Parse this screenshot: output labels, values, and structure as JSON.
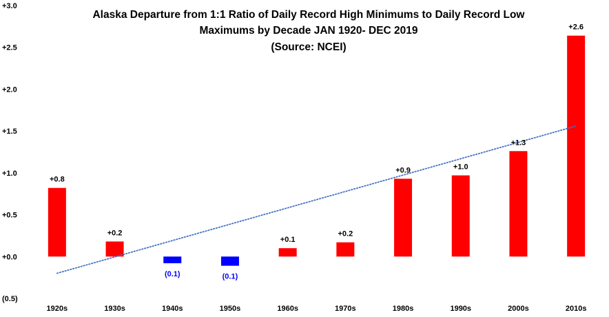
{
  "chart_data": {
    "type": "bar",
    "title_lines": [
      "Alaska Departure from 1:1 Ratio of Daily Record High Minimums to Daily Record Low",
      "Maximums by Decade JAN 1920- DEC 2019",
      "(Source: NCEI)"
    ],
    "categories": [
      "1920s",
      "1930s",
      "1940s",
      "1950s",
      "1960s",
      "1970s",
      "1980s",
      "1990s",
      "2000s",
      "2010s"
    ],
    "values": [
      0.82,
      0.18,
      -0.08,
      -0.11,
      0.1,
      0.17,
      0.93,
      0.97,
      1.26,
      2.64
    ],
    "data_labels": [
      "+0.8",
      "+0.2",
      "(0.1)",
      "(0.1)",
      "+0.1",
      "+0.2",
      "+0.9",
      "+1.0",
      "+1.3",
      "+2.6"
    ],
    "ylim": [
      -0.5,
      3.0
    ],
    "yticks": [
      {
        "value": 3.0,
        "label": "+3.0"
      },
      {
        "value": 2.5,
        "label": "+2.5"
      },
      {
        "value": 2.0,
        "label": "+2.0"
      },
      {
        "value": 1.5,
        "label": "+1.5"
      },
      {
        "value": 1.0,
        "label": "+1.0"
      },
      {
        "value": 0.5,
        "label": "+0.5"
      },
      {
        "value": 0.0,
        "label": "+0.0"
      },
      {
        "value": -0.5,
        "label": "(0.5)"
      }
    ],
    "positive_color": "#ff0000",
    "negative_color": "#0000ff",
    "trendline": {
      "start": -0.2,
      "end": 1.56,
      "color": "#4472c4",
      "style": "dotted"
    },
    "grid": false,
    "legend": "none"
  }
}
